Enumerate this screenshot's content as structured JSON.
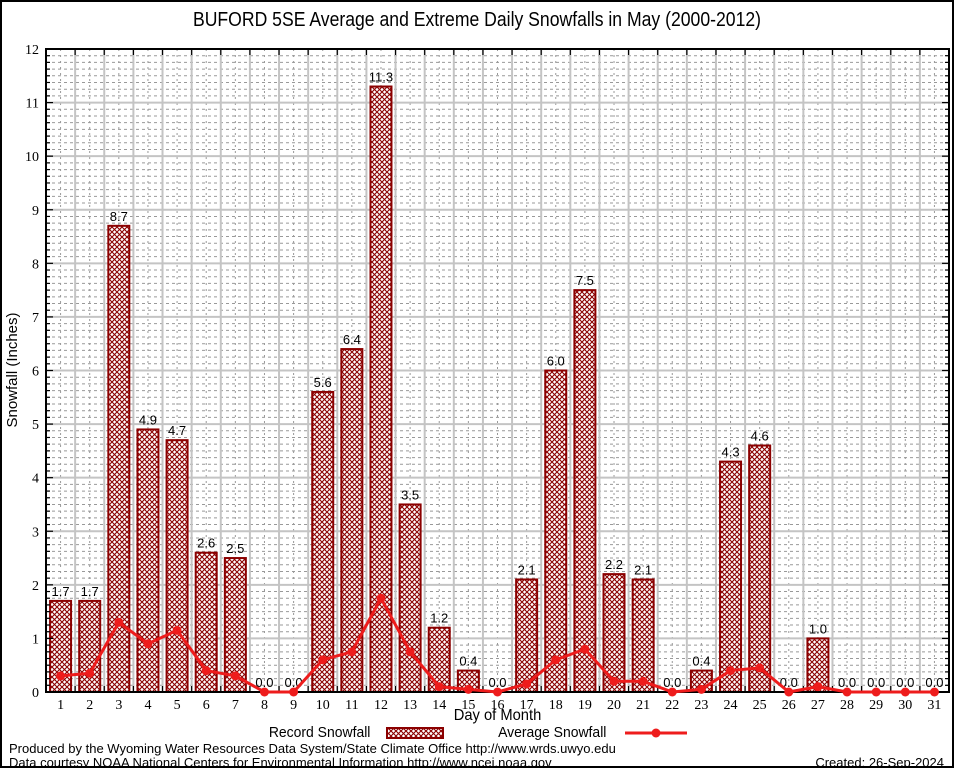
{
  "title": "BUFORD 5SE Average and Extreme Daily Snowfalls in May (2000-2012)",
  "chart_data": {
    "type": "bar",
    "categories": [
      1,
      2,
      3,
      4,
      5,
      6,
      7,
      8,
      9,
      10,
      11,
      12,
      13,
      14,
      15,
      16,
      17,
      18,
      19,
      20,
      21,
      22,
      23,
      24,
      25,
      26,
      27,
      28,
      29,
      30,
      31
    ],
    "series": [
      {
        "name": "Record Snowfall",
        "render": "bar",
        "values": [
          1.7,
          1.7,
          8.7,
          4.9,
          4.7,
          2.6,
          2.5,
          0.0,
          0.0,
          5.6,
          6.4,
          11.3,
          3.5,
          1.2,
          0.4,
          0.0,
          2.1,
          6.0,
          7.5,
          2.2,
          2.1,
          0.0,
          0.4,
          4.3,
          4.6,
          0.0,
          1.0,
          0.0,
          0.0,
          0.0,
          0.0
        ]
      },
      {
        "name": "Average Snowfall",
        "render": "line",
        "values": [
          0.3,
          0.35,
          1.3,
          0.9,
          1.15,
          0.4,
          0.3,
          0.0,
          0.0,
          0.6,
          0.75,
          1.75,
          0.75,
          0.1,
          0.05,
          0.0,
          0.15,
          0.6,
          0.8,
          0.2,
          0.2,
          0.0,
          0.05,
          0.4,
          0.45,
          0.0,
          0.1,
          0.0,
          0.0,
          0.0,
          0.0
        ]
      }
    ],
    "title": "BUFORD 5SE Average and Extreme Daily Snowfalls in May (2000-2012)",
    "xlabel": "Day of Month",
    "ylabel": "Snowfall (Inches)",
    "ylim": [
      0,
      12
    ],
    "y_ticks": [
      0,
      1,
      2,
      3,
      4,
      5,
      6,
      7,
      8,
      9,
      10,
      11,
      12
    ],
    "grid": true,
    "legend_position": "bottom",
    "bar_value_labels_decimals": 1
  },
  "footer": {
    "line1": "Produced by the Wyoming Water Resources Data System/State Climate Office http://www.wrds.uwyo.edu",
    "line2": "Data courtesy NOAA National Centers for Environmental Information http://www.ncei.noaa.gov",
    "created": "Created: 26-Sep-2024"
  },
  "colors": {
    "bar_border": "#8b0000",
    "bar_hatch": "#8b0000",
    "line": "#ee1c1c",
    "grid_major": "#c4c4c4",
    "grid_minor": "#999999",
    "axis": "#000000"
  }
}
